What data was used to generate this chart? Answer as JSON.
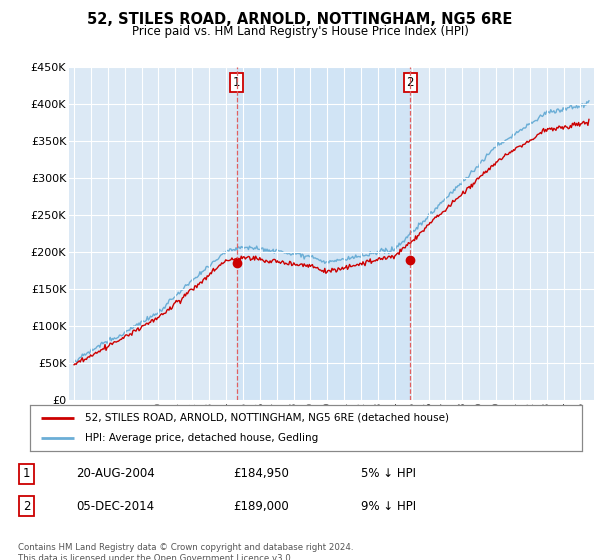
{
  "title": "52, STILES ROAD, ARNOLD, NOTTINGHAM, NG5 6RE",
  "subtitle": "Price paid vs. HM Land Registry's House Price Index (HPI)",
  "ylim": [
    0,
    450000
  ],
  "yticks": [
    0,
    50000,
    100000,
    150000,
    200000,
    250000,
    300000,
    350000,
    400000,
    450000
  ],
  "ytick_labels": [
    "£0",
    "£50K",
    "£100K",
    "£150K",
    "£200K",
    "£250K",
    "£300K",
    "£350K",
    "£400K",
    "£450K"
  ],
  "sale1_date_num": 2004.64,
  "sale1_price": 184950,
  "sale2_date_num": 2014.92,
  "sale2_price": 189000,
  "hpi_color": "#6baed6",
  "sale_color": "#cc0000",
  "vline_color": "#e06060",
  "shade_color": "#d0e4f5",
  "plot_bg_color": "#dce9f5",
  "legend_entry1": "52, STILES ROAD, ARNOLD, NOTTINGHAM, NG5 6RE (detached house)",
  "legend_entry2": "HPI: Average price, detached house, Gedling",
  "table_entries": [
    {
      "num": "1",
      "date": "20-AUG-2004",
      "price": "£184,950",
      "pct": "5% ↓ HPI"
    },
    {
      "num": "2",
      "date": "05-DEC-2014",
      "price": "£189,000",
      "pct": "9% ↓ HPI"
    }
  ],
  "footnote": "Contains HM Land Registry data © Crown copyright and database right 2024.\nThis data is licensed under the Open Government Licence v3.0."
}
